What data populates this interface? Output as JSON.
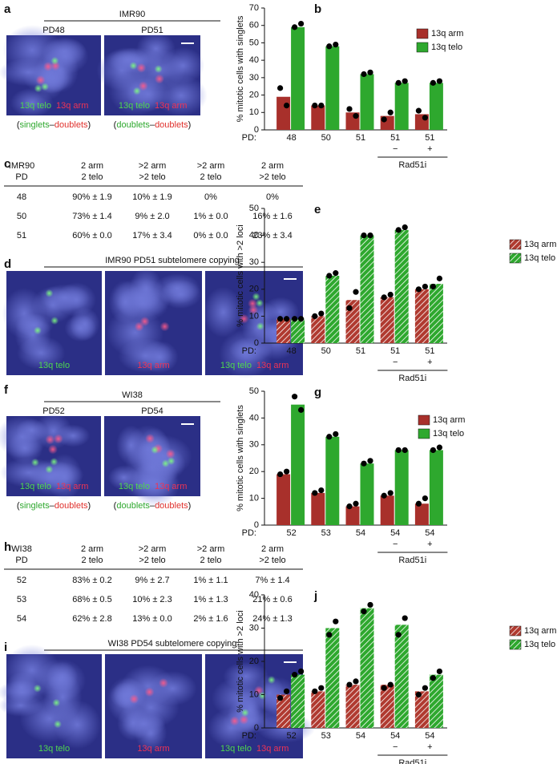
{
  "panel_a": {
    "letter": "a",
    "cell_line": "IMR90",
    "images": [
      {
        "title": "PD48",
        "labels": [
          "13q telo",
          "13q arm"
        ],
        "caption": [
          "(",
          "singlets",
          "–",
          "doublets",
          ")"
        ]
      },
      {
        "title": "PD51",
        "labels": [
          "13q telo",
          "13q arm"
        ],
        "caption": [
          "(",
          "doublets",
          "–",
          "doublets",
          ")"
        ]
      }
    ]
  },
  "panel_c": {
    "letter": "c",
    "header": [
      [
        "IMR90",
        "2 arm",
        ">2 arm",
        ">2 arm",
        "2 arm"
      ],
      [
        "PD",
        "2 telo",
        ">2 telo",
        "2 telo",
        ">2 telo"
      ]
    ],
    "rows": [
      [
        "48",
        "90% ± 1.9",
        "10% ± 1.9",
        "0%",
        "0%"
      ],
      [
        "50",
        "73% ± 1.4",
        "9% ± 2.0",
        "1% ± 0.0",
        "16% ± 1.6"
      ],
      [
        "51",
        "60% ± 0.0",
        "17% ± 3.4",
        "0% ± 0.0",
        "23% ± 3.4"
      ]
    ]
  },
  "panel_d": {
    "letter": "d",
    "title": "IMR90 PD51 subtelomere copying",
    "images": [
      {
        "labels": [
          "13q telo"
        ]
      },
      {
        "labels": [
          "13q arm"
        ]
      },
      {
        "labels": [
          "13q telo",
          "13q arm"
        ]
      }
    ]
  },
  "panel_f": {
    "letter": "f",
    "cell_line": "WI38",
    "images": [
      {
        "title": "PD52",
        "labels": [
          "13q telo",
          "13q arm"
        ],
        "caption": [
          "(",
          "singlets",
          "–",
          "doublets",
          ")"
        ]
      },
      {
        "title": "PD54",
        "labels": [
          "13q telo",
          "13q arm"
        ],
        "caption": [
          "(",
          "doublets",
          "–",
          "doublets",
          ")"
        ]
      }
    ]
  },
  "panel_h": {
    "letter": "h",
    "header": [
      [
        "WI38",
        "2 arm",
        ">2 arm",
        ">2 arm",
        "2 arm"
      ],
      [
        "PD",
        "2 telo",
        ">2 telo",
        "2 telo",
        ">2 telo"
      ]
    ],
    "rows": [
      [
        "52",
        "83% ± 0.2",
        "9% ± 2.7",
        "1% ± 1.1",
        "7% ± 1.4"
      ],
      [
        "53",
        "68% ± 0.5",
        "10% ± 2.3",
        "1% ± 1.3",
        "21% ± 0.6"
      ],
      [
        "54",
        "62% ± 2.8",
        "13% ± 0.0",
        "2% ± 1.6",
        "24% ± 1.3"
      ]
    ]
  },
  "panel_i": {
    "letter": "i",
    "title": "WI38 PD54 subtelomere copying",
    "images": [
      {
        "labels": [
          "13q telo"
        ]
      },
      {
        "labels": [
          "13q arm"
        ]
      },
      {
        "labels": [
          "13q telo",
          "13q arm"
        ]
      }
    ]
  },
  "chart_data": [
    {
      "type": "bar",
      "letter": "b",
      "ylabel": "% mitotic cells with singlets",
      "x_prefix": "PD:",
      "categories": [
        "48",
        "50",
        "51",
        "51",
        "51"
      ],
      "treatments": [
        null,
        null,
        null,
        "−",
        "+"
      ],
      "group_label": "Rad51i",
      "ylim": [
        0,
        70
      ],
      "yticks": [
        0,
        10,
        20,
        30,
        40,
        50,
        60,
        70
      ],
      "legend": "upper right",
      "series": [
        {
          "name": "13q arm",
          "color": "#a8302b",
          "hatched": false,
          "values": [
            19,
            14,
            10,
            8,
            9
          ],
          "points": [
            [
              24,
              14
            ],
            [
              14,
              14
            ],
            [
              12,
              8
            ],
            [
              6,
              10
            ],
            [
              11,
              7
            ]
          ]
        },
        {
          "name": "13q telo",
          "color": "#2ea82e",
          "hatched": false,
          "values": [
            59,
            48,
            32,
            27,
            27
          ],
          "points": [
            [
              59,
              61
            ],
            [
              48,
              49
            ],
            [
              32,
              33
            ],
            [
              27,
              28
            ],
            [
              27,
              28
            ]
          ]
        }
      ]
    },
    {
      "type": "bar",
      "letter": "e",
      "ylabel": "% mitotic cells with >2 loci",
      "x_prefix": "PD:",
      "categories": [
        "48",
        "50",
        "51",
        "51",
        "51"
      ],
      "treatments": [
        null,
        null,
        null,
        "−",
        "+"
      ],
      "group_label": "Rad51i",
      "ylim": [
        0,
        50
      ],
      "yticks": [
        0,
        10,
        20,
        30,
        40,
        50
      ],
      "legend": "right",
      "series": [
        {
          "name": "13q arm",
          "color": "#b03a30",
          "hatched": true,
          "values": [
            9,
            10,
            16,
            17,
            20
          ],
          "points": [
            [
              9,
              9
            ],
            [
              10,
              11
            ],
            [
              13,
              19
            ],
            [
              17,
              18
            ],
            [
              20,
              21
            ]
          ]
        },
        {
          "name": "13q telo",
          "color": "#2ea82e",
          "hatched": true,
          "values": [
            9,
            25,
            40,
            42,
            22
          ],
          "points": [
            [
              9,
              9
            ],
            [
              25,
              26
            ],
            [
              40,
              40
            ],
            [
              42,
              43
            ],
            [
              21,
              24
            ]
          ]
        }
      ]
    },
    {
      "type": "bar",
      "letter": "g",
      "ylabel": "% mitotic cells with singlets",
      "x_prefix": "PD:",
      "categories": [
        "52",
        "53",
        "54",
        "54",
        "54"
      ],
      "treatments": [
        null,
        null,
        null,
        "−",
        "+"
      ],
      "group_label": "Rad51i",
      "ylim": [
        0,
        50
      ],
      "yticks": [
        0,
        10,
        20,
        30,
        40,
        50
      ],
      "legend": "upper right",
      "series": [
        {
          "name": "13q arm",
          "color": "#a8302b",
          "hatched": false,
          "values": [
            19,
            12,
            7,
            11,
            8
          ],
          "points": [
            [
              19,
              20
            ],
            [
              12,
              13
            ],
            [
              7,
              8
            ],
            [
              11,
              12
            ],
            [
              8,
              10
            ]
          ]
        },
        {
          "name": "13q telo",
          "color": "#2ea82e",
          "hatched": false,
          "values": [
            45,
            33,
            23,
            28,
            28
          ],
          "points": [
            [
              48,
              43
            ],
            [
              33,
              34
            ],
            [
              23,
              24
            ],
            [
              28,
              28
            ],
            [
              28,
              29
            ]
          ]
        }
      ]
    },
    {
      "type": "bar",
      "letter": "j",
      "ylabel": "% mitotic cells with >2 loci",
      "x_prefix": "PD:",
      "categories": [
        "52",
        "53",
        "54",
        "54",
        "54"
      ],
      "treatments": [
        null,
        null,
        null,
        "−",
        "+"
      ],
      "group_label": "Rad51i",
      "ylim": [
        0,
        40
      ],
      "yticks": [
        0,
        10,
        20,
        30,
        40
      ],
      "legend": "right",
      "series": [
        {
          "name": "13q arm",
          "color": "#b03a30",
          "hatched": true,
          "values": [
            10,
            11,
            13,
            13,
            11
          ],
          "points": [
            [
              9,
              11
            ],
            [
              11,
              12
            ],
            [
              13,
              14
            ],
            [
              12,
              13
            ],
            [
              10,
              12
            ]
          ]
        },
        {
          "name": "13q telo",
          "color": "#2ea82e",
          "hatched": true,
          "values": [
            16,
            30,
            36,
            31,
            16
          ],
          "points": [
            [
              16,
              17
            ],
            [
              28,
              32
            ],
            [
              35,
              37
            ],
            [
              28,
              33
            ],
            [
              15,
              17
            ]
          ]
        }
      ]
    }
  ]
}
